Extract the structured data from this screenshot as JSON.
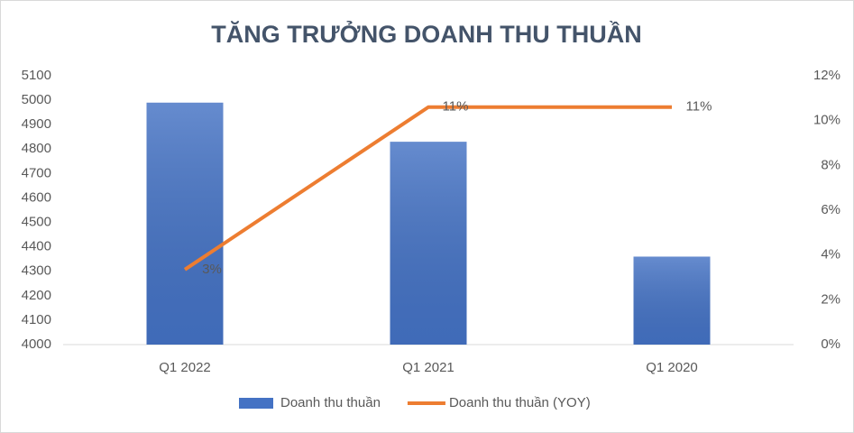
{
  "chart_data": {
    "type": "combo",
    "title": "TĂNG TRƯỞNG DOANH THU THUẦN",
    "categories": [
      "Q1 2022",
      "Q1 2021",
      "Q1 2020"
    ],
    "series": [
      {
        "name": "Doanh thu thuần",
        "type": "bar",
        "color": "#4472c4",
        "values": [
          4990,
          4830,
          4360
        ]
      },
      {
        "name": "Doanh thu thuần (YOY)",
        "type": "line",
        "axis": "y2",
        "color": "#ed7d31",
        "values": [
          3.35,
          10.6,
          10.6
        ],
        "value_labels": [
          "3%",
          "11%",
          "11%"
        ]
      }
    ],
    "ylim": [
      4000,
      5100
    ],
    "yticks": [
      4000,
      4100,
      4200,
      4300,
      4400,
      4500,
      4600,
      4700,
      4800,
      4900,
      5000,
      5100
    ],
    "y2lim": [
      0,
      12
    ],
    "y2ticks": [
      {
        "value": 0,
        "label": "0%"
      },
      {
        "value": 2,
        "label": "2%"
      },
      {
        "value": 4,
        "label": "4%"
      },
      {
        "value": 6,
        "label": "6%"
      },
      {
        "value": 8,
        "label": "8%"
      },
      {
        "value": 10,
        "label": "10%"
      },
      {
        "value": 12,
        "label": "12%"
      }
    ],
    "grid": false,
    "legend": "bottom"
  }
}
